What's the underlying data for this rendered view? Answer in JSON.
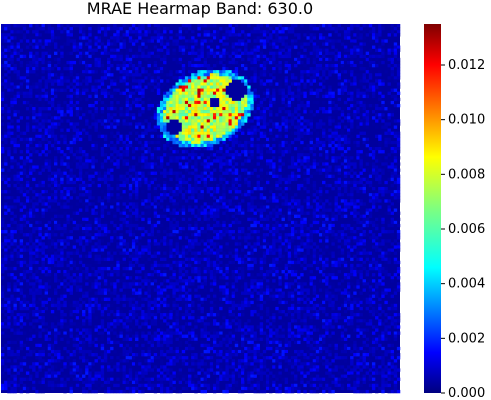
{
  "chart_data": {
    "type": "heatmap",
    "title": "MRAE Hearmap Band: 630.0",
    "xlabel": "",
    "ylabel": "",
    "colormap": "jet",
    "colorbar": {
      "min": 0.0,
      "max": 0.0135,
      "ticks": [
        0.0,
        0.002,
        0.004,
        0.006,
        0.008,
        0.01,
        0.012
      ],
      "tick_labels": [
        "0.000",
        "0.002",
        "0.004",
        "0.006",
        "0.008",
        "0.010",
        "0.012"
      ]
    },
    "grid": {
      "rows": 120,
      "cols": 128
    },
    "background_value": 0.0004,
    "hotspot": {
      "center_row": 27,
      "center_col": 65,
      "radius_rows": 12,
      "radius_cols": 26,
      "peak_value": 0.0128,
      "typical_value": 0.0072
    },
    "axes_ticks_visible": false
  }
}
